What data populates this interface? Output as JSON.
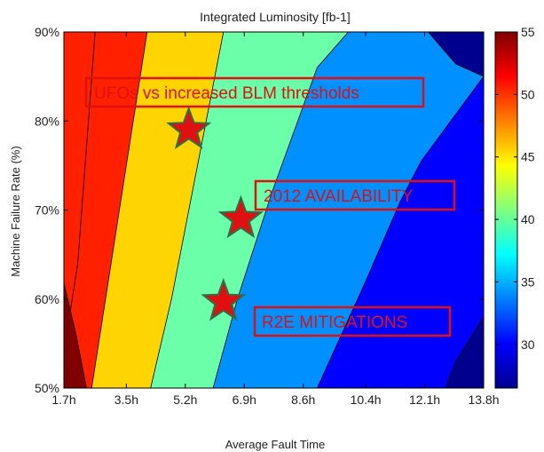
{
  "chart_data": {
    "type": "heatmap",
    "subtype": "filled-contour",
    "title": "Integrated Luminosity [fb-1]",
    "xlabel": "Average Fault Time",
    "ylabel": "Machine Failure Rate (%)",
    "x_ticks": [
      "1.7h",
      "3.5h",
      "5.2h",
      "6.9h",
      "8.6h",
      "10.4h",
      "12.1h",
      "13.8h"
    ],
    "x_tick_values": [
      1.7,
      3.5,
      5.2,
      6.9,
      8.6,
      10.4,
      12.1,
      13.8
    ],
    "xlim": [
      1.7,
      13.8
    ],
    "y_ticks": [
      "50%",
      "60%",
      "70%",
      "80%",
      "90%"
    ],
    "y_tick_values": [
      50,
      60,
      70,
      80,
      90
    ],
    "ylim": [
      50,
      90
    ],
    "colorbar": {
      "ticks": [
        "30",
        "35",
        "40",
        "45",
        "50",
        "55"
      ],
      "tick_values": [
        30,
        35,
        40,
        45,
        50,
        55
      ],
      "range": [
        26.5,
        55
      ]
    },
    "contour_levels": [
      {
        "min": 26.5,
        "max": 31.5,
        "color": "#00008f"
      },
      {
        "min": 31.5,
        "max": 36.5,
        "color": "#0000ff"
      },
      {
        "min": 36.5,
        "max": 41.5,
        "color": "#0090ff"
      },
      {
        "min": 41.5,
        "max": 46.5,
        "color": "#6affa8"
      },
      {
        "min": 46.5,
        "max": 51.5,
        "color": "#ffd400"
      },
      {
        "min": 51.5,
        "max": 56.5,
        "color": "#ff2000"
      },
      {
        "min": 56.5,
        "max": 61.5,
        "color": "#800000"
      }
    ],
    "markers": [
      {
        "x": 5.3,
        "y": 79,
        "color": "#e01010"
      },
      {
        "x": 6.8,
        "y": 69,
        "color": "#e01010"
      },
      {
        "x": 6.3,
        "y": 59.7,
        "color": "#e01010"
      }
    ],
    "annotations": [
      {
        "text": "UFOs vs increased BLM thresholds"
      },
      {
        "text": "2012 AVAILABILITY"
      },
      {
        "text": "R2E MITIGATIONS"
      }
    ]
  }
}
